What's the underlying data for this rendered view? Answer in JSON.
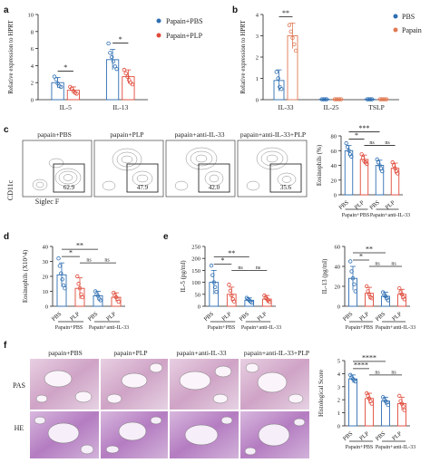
{
  "panels": {
    "a": {
      "letter": "a",
      "ylabel": "Relative expression to HPRT",
      "legend": [
        {
          "label": "Papain+PBS",
          "color": "#2f6fb3"
        },
        {
          "label": "Papain+PLP",
          "color": "#e04a3a"
        }
      ],
      "sig": [
        "*",
        "*"
      ]
    },
    "b": {
      "letter": "b",
      "ylabel": "Relative expression to HPRT",
      "legend": [
        {
          "label": "PBS",
          "color": "#2f6fb3"
        },
        {
          "label": "Papain",
          "color": "#e07a55"
        }
      ],
      "sig": [
        "**"
      ]
    },
    "c": {
      "letter": "c",
      "flow_titles": [
        "papain+PBS",
        "papain+PLP",
        "papain+anti-IL-33",
        "papain+anti-IL-33+PLP"
      ],
      "flow_gate_values": [
        "62.9",
        "47.9",
        "42.0",
        "35.6"
      ],
      "flow_xlabel": "Siglec F",
      "flow_ylabel": "CD11c",
      "sig": [
        "*",
        "***",
        "ns",
        "ns"
      ]
    },
    "d": {
      "letter": "d",
      "sig": [
        "*",
        "**",
        "ns",
        "ns"
      ]
    },
    "e": {
      "letter": "e",
      "sig_left": [
        "*",
        "**",
        "ns",
        "ns"
      ],
      "sig_right": [
        "*",
        "**",
        "ns",
        "ns"
      ]
    },
    "f": {
      "letter": "f",
      "col_titles": [
        "papain+PBS",
        "papain+PLP",
        "papain+anti-IL-33",
        "papain+anti-IL-33+PLP"
      ],
      "row_labels": [
        "PAS",
        "HE"
      ],
      "sig": [
        "****",
        "****",
        "ns",
        "ns"
      ]
    }
  },
  "chart_data": [
    {
      "panel": "a",
      "type": "bar",
      "ylabel": "Relative expression to HPRT",
      "ylim": [
        0,
        10
      ],
      "yticks": [
        "0",
        "2",
        "4",
        "6",
        "8",
        "10"
      ],
      "categories": [
        "IL-5",
        "IL-13"
      ],
      "series": [
        {
          "name": "Papain+PBS",
          "color": "#2f6fb3",
          "values": [
            2.0,
            4.7
          ],
          "errors": [
            0.6,
            1.2
          ]
        },
        {
          "name": "Papain+PLP",
          "color": "#e04a3a",
          "values": [
            1.1,
            2.7
          ],
          "errors": [
            0.4,
            0.8
          ]
        }
      ],
      "points": [
        [
          [
            2.7,
            2.4,
            1.9,
            1.6,
            1.5
          ],
          [
            6.6,
            5.5,
            5.0,
            4.5,
            3.9,
            3.6
          ]
        ],
        [
          [
            1.5,
            1.3,
            1.0,
            0.8,
            0.7
          ],
          [
            3.5,
            3.1,
            2.7,
            2.3,
            2.0,
            1.8
          ]
        ]
      ]
    },
    {
      "panel": "b",
      "type": "bar",
      "ylabel": "Relative expression to HPRT",
      "ylim": [
        0,
        4
      ],
      "yticks": [
        "0",
        "1",
        "2",
        "3",
        "4"
      ],
      "categories": [
        "IL-33",
        "IL-25",
        "TSLP"
      ],
      "series": [
        {
          "name": "PBS",
          "color": "#2f6fb3",
          "values": [
            0.9,
            0.02,
            0.02
          ],
          "errors": [
            0.5,
            0.01,
            0.01
          ]
        },
        {
          "name": "Papain",
          "color": "#e07a55",
          "values": [
            3.0,
            0.02,
            0.02
          ],
          "errors": [
            0.6,
            0.01,
            0.01
          ]
        }
      ],
      "points": [
        [
          [
            1.3,
            1.0,
            0.6,
            0.5
          ],
          [
            0.02,
            0.02,
            0.02,
            0.02
          ],
          [
            0.02,
            0.02,
            0.02,
            0.02
          ]
        ],
        [
          [
            3.5,
            3.2,
            2.9,
            2.6,
            2.3
          ],
          [
            0.02,
            0.02,
            0.02,
            0.02,
            0.02
          ],
          [
            0.02,
            0.02,
            0.02,
            0.02,
            0.02
          ]
        ]
      ]
    },
    {
      "panel": "c",
      "type": "bar",
      "ylabel": "Eosinophils (%)",
      "ylim": [
        0,
        80
      ],
      "yticks": [
        "0",
        "20",
        "40",
        "60",
        "80"
      ],
      "categories": [
        "PBS",
        "PLP",
        "PBS",
        "PLP"
      ],
      "group_labels": [
        "Papain+PBS",
        "Papain+anti-IL-33"
      ],
      "series": [
        {
          "name": "",
          "colors": [
            "#2f6fb3",
            "#e04a3a",
            "#2f6fb3",
            "#e04a3a"
          ],
          "values": [
            60,
            48,
            40,
            36
          ],
          "errors": [
            7,
            6,
            7,
            7
          ]
        }
      ],
      "points": [
        [
          70,
          65,
          60,
          55,
          52
        ],
        [
          55,
          50,
          46,
          44,
          42
        ],
        [
          48,
          44,
          40,
          36,
          32
        ],
        [
          44,
          40,
          36,
          32,
          29
        ]
      ]
    },
    {
      "panel": "d",
      "type": "bar",
      "ylabel": "Eosinophils (X10^4)",
      "ylim": [
        0,
        40
      ],
      "yticks": [
        "0",
        "10",
        "20",
        "30",
        "40"
      ],
      "categories": [
        "PBS",
        "PLP",
        "PBS",
        "PLP"
      ],
      "group_labels": [
        "Papain+PBS",
        "Papain+anti-IL-33"
      ],
      "series": [
        {
          "name": "",
          "colors": [
            "#2f6fb3",
            "#e04a3a",
            "#2f6fb3",
            "#e04a3a"
          ],
          "values": [
            21,
            12,
            7,
            6
          ],
          "errors": [
            8,
            7,
            3,
            3
          ]
        }
      ],
      "points": [
        [
          32,
          27,
          22,
          18,
          14,
          12
        ],
        [
          20,
          15,
          12,
          8,
          6
        ],
        [
          10,
          8,
          7,
          5,
          4
        ],
        [
          9,
          7,
          6,
          5,
          3
        ]
      ]
    },
    {
      "panel": "e-left",
      "type": "bar",
      "ylabel": "IL-5 (pg/ml)",
      "ylim": [
        0,
        250
      ],
      "yticks": [
        "0",
        "50",
        "100",
        "150",
        "200",
        "250"
      ],
      "categories": [
        "PBS",
        "PLP",
        "PBS",
        "PLP"
      ],
      "group_labels": [
        "Papain+PBS",
        "Papain+anti-IL-33"
      ],
      "series": [
        {
          "name": "",
          "colors": [
            "#2f6fb3",
            "#e04a3a",
            "#2f6fb3",
            "#e04a3a"
          ],
          "values": [
            100,
            50,
            25,
            30
          ],
          "errors": [
            50,
            30,
            10,
            15
          ]
        }
      ],
      "points": [
        [
          170,
          130,
          100,
          80,
          60
        ],
        [
          90,
          65,
          45,
          30,
          20
        ],
        [
          35,
          30,
          25,
          20,
          15
        ],
        [
          45,
          35,
          30,
          25,
          18
        ]
      ]
    },
    {
      "panel": "e-right",
      "type": "bar",
      "ylabel": "IL-13 (pg/ml)",
      "ylim": [
        0,
        60
      ],
      "yticks": [
        "0",
        "20",
        "40",
        "60"
      ],
      "categories": [
        "PBS",
        "PLP",
        "PBS",
        "PLP"
      ],
      "group_labels": [
        "Papain+PBS",
        "Papain+anti-IL-33"
      ],
      "series": [
        {
          "name": "",
          "colors": [
            "#2f6fb3",
            "#e04a3a",
            "#2f6fb3",
            "#e04a3a"
          ],
          "values": [
            28,
            13,
            10,
            12
          ],
          "errors": [
            12,
            6,
            4,
            5
          ]
        }
      ],
      "points": [
        [
          45,
          35,
          28,
          22,
          15
        ],
        [
          20,
          15,
          12,
          9,
          8
        ],
        [
          14,
          11,
          10,
          8,
          6
        ],
        [
          18,
          14,
          12,
          9,
          7
        ]
      ]
    },
    {
      "panel": "f",
      "type": "bar",
      "ylabel": "Histological Score",
      "ylim": [
        0,
        5
      ],
      "yticks": [
        "0",
        "1",
        "2",
        "3",
        "4",
        "5"
      ],
      "categories": [
        "PBS",
        "PLP",
        "PBS",
        "PLP"
      ],
      "group_labels": [
        "Papain+PBS",
        "Papain+anti-IL-33"
      ],
      "series": [
        {
          "name": "",
          "colors": [
            "#2f6fb3",
            "#e04a3a",
            "#2f6fb3",
            "#e04a3a"
          ],
          "values": [
            3.6,
            2.1,
            1.9,
            1.7
          ],
          "errors": [
            0.3,
            0.4,
            0.3,
            0.5
          ]
        }
      ],
      "points": [
        [
          3.9,
          3.7,
          3.6,
          3.5,
          3.4
        ],
        [
          2.5,
          2.3,
          2.1,
          1.9,
          1.7
        ],
        [
          2.2,
          2.0,
          1.9,
          1.8,
          1.6
        ],
        [
          2.3,
          1.9,
          1.7,
          1.5,
          1.2
        ]
      ]
    }
  ]
}
